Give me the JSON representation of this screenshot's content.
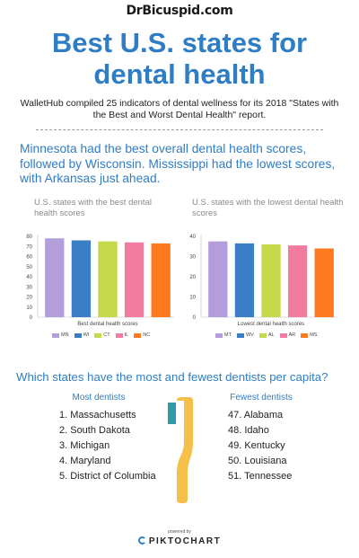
{
  "brand": "DrBicuspid.com",
  "title_line1": "Best U.S. states for",
  "title_line2": "dental health",
  "subtitle": "WalletHub compiled 25 indicators of dental wellness for its 2018 \"States with the Best and Worst Dental Health\" report.",
  "finding": "Minnesota had the best overall dental health scores, followed by Wisconsin. Mississippi had the lowest scores, with Arkansas just ahead.",
  "chart_data": [
    {
      "type": "bar",
      "title": "U.S. states with the best dental health scores",
      "xlabel": "Best dental health scores",
      "ylabel": "",
      "categories": [
        "MN",
        "WI",
        "CT",
        "IL",
        "NC"
      ],
      "values": [
        78,
        76,
        75,
        74,
        73
      ],
      "colors": [
        "#b39ddb",
        "#3a7ec6",
        "#c5d94a",
        "#f27ba0",
        "#ff7a1f"
      ],
      "ylim": [
        0,
        80
      ],
      "yticks": [
        0,
        10,
        20,
        30,
        40,
        50,
        60,
        70,
        80
      ],
      "grid": false,
      "legend": "bottom"
    },
    {
      "type": "bar",
      "title": "U.S. states with the lowest dental health scores",
      "xlabel": "Lowest dental health scores",
      "ylabel": "",
      "categories": [
        "MT",
        "WV",
        "AL",
        "AR",
        "MS"
      ],
      "values": [
        37.5,
        36.5,
        36,
        35.5,
        34
      ],
      "colors": [
        "#b39ddb",
        "#3a7ec6",
        "#c5d94a",
        "#f27ba0",
        "#ff7a1f"
      ],
      "ylim": [
        0,
        40
      ],
      "yticks": [
        0,
        10,
        20,
        30,
        40
      ],
      "grid": false,
      "legend": "bottom"
    }
  ],
  "question": "Which states have the most and fewest dentists per capita?",
  "most": {
    "heading": "Most dentists",
    "items": [
      "1. Massachusetts",
      "2. South Dakota",
      "3. Michigan",
      "4. Maryland",
      "5. District of Columbia"
    ]
  },
  "fewest": {
    "heading": "Fewest dentists",
    "items": [
      "47. Alabama",
      "48. Idaho",
      "49. Kentucky",
      "50. Louisiana",
      "51. Tennessee"
    ]
  },
  "toothbrush_icon": "toothbrush-icon",
  "footer": {
    "powered": "powered by",
    "logo": "PIKTOCHART"
  }
}
